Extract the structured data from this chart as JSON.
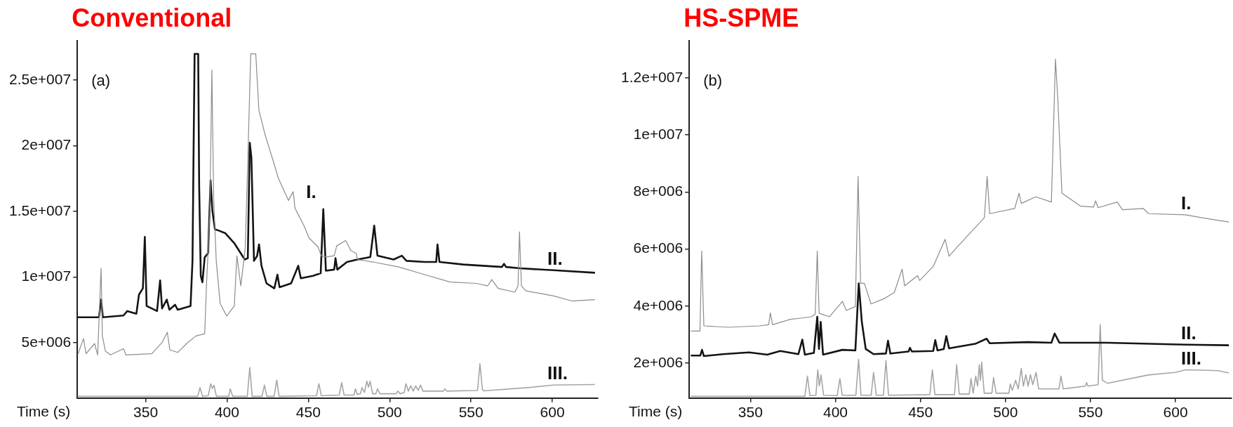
{
  "chart_data": [
    {
      "type": "line",
      "title": "Conventional",
      "xlabel": "Time (s)",
      "annotations": [
        "(a)"
      ],
      "xlim": [
        308,
        628
      ],
      "xticks": [
        350,
        400,
        450,
        500,
        550,
        600
      ],
      "ylim": [
        770000,
        28000000
      ],
      "yticks": [
        {
          "value": 5000000,
          "label": "5e+006"
        },
        {
          "value": 10000000,
          "label": "1e+007"
        },
        {
          "value": 15000000,
          "label": "1.5e+007"
        },
        {
          "value": 20000000,
          "label": "2e+007"
        },
        {
          "value": 25000000,
          "label": "2.5e+007"
        }
      ],
      "series": [
        {
          "name": "I.",
          "color": "#8c8c8c",
          "x": [
            308.2,
            311.8,
            313.4,
            318.6,
            320.5,
            322.6,
            323.4,
            325.3,
            328.4,
            336.4,
            337.9,
            353.8,
            360.1,
            363.3,
            364.9,
            369.7,
            375.2,
            380.7,
            386.3,
            387.4,
            389.5,
            390.7,
            391.8,
            393.4,
            395.8,
            399.8,
            404.5,
            406.1,
            408.5,
            411.2,
            412.8,
            414.6,
            417.7,
            419.6,
            423.5,
            428.3,
            431.5,
            437.8,
            440.7,
            441.8,
            444.1,
            447.3,
            450.5,
            456,
            457.9,
            461.1,
            465.9,
            467.5,
            473,
            476.2,
            479.4,
            480.2,
            489.7,
            505.6,
            521.4,
            537.3,
            553.2,
            560.3,
            562.7,
            566.7,
            577,
            578.9,
            579.8,
            581,
            583.7,
            600.8,
            611.9,
            626.2
          ],
          "values": [
            4060000,
            5300000,
            4150000,
            4920000,
            4060000,
            10660000,
            5490000,
            4340000,
            4060000,
            4530000,
            4060000,
            4150000,
            5010000,
            5780000,
            4440000,
            4250000,
            4920000,
            5490000,
            5680000,
            9320000,
            15060000,
            25780000,
            16020000,
            11230000,
            7980000,
            7020000,
            7790000,
            11620000,
            9320000,
            12190000,
            18890000,
            27000000,
            27000000,
            22720000,
            20800000,
            18890000,
            17550000,
            15830000,
            16500000,
            15250000,
            14680000,
            13910000,
            12960000,
            12290000,
            11620000,
            11520000,
            11620000,
            12380000,
            12770000,
            12000000,
            11810000,
            11330000,
            11140000,
            10760000,
            10180000,
            9610000,
            9510000,
            9320000,
            9800000,
            9130000,
            8840000,
            9320000,
            13440000,
            9320000,
            8940000,
            8550000,
            8170000,
            8270000
          ]
        },
        {
          "name": "II.",
          "color": "#141414",
          "x": [
            308.2,
            321.3,
            322.6,
            323.7,
            336.4,
            338.7,
            344.3,
            345.9,
            348.3,
            349.5,
            350.6,
            357,
            358.9,
            360.1,
            363,
            364.6,
            368.1,
            369.7,
            377.6,
            378.8,
            379.5,
            380.1,
            382.3,
            382.9,
            383.9,
            384.9,
            386.3,
            388.4,
            389.9,
            391,
            392.6,
            395,
            398.9,
            404.5,
            410.9,
            412.8,
            414,
            415,
            416.6,
            418.5,
            419.7,
            421.2,
            424.3,
            429.1,
            431,
            432.3,
            439.4,
            443.8,
            445.4,
            452.9,
            457.6,
            459.2,
            460.8,
            465.9,
            466.7,
            467.8,
            473.8,
            480.2,
            488.1,
            490.5,
            492.5,
            502.4,
            507.5,
            510.3,
            521.4,
            528.6,
            529.4,
            530.6,
            545.2,
            569,
            570.3,
            571.5,
            580.2,
            600.8,
            626.2
          ],
          "values": [
            6930000,
            6930000,
            8270000,
            6930000,
            7060000,
            7400000,
            7200000,
            8650000,
            9130000,
            13050000,
            7790000,
            7400000,
            9740000,
            7600000,
            8270000,
            7500000,
            7880000,
            7500000,
            7790000,
            11230000,
            20040000,
            27000000,
            27000000,
            16980000,
            10080000,
            9600000,
            11500000,
            11810000,
            17360000,
            15060000,
            13630000,
            13530000,
            13340000,
            12570000,
            11330000,
            11430000,
            20230000,
            19080000,
            11230000,
            11600000,
            12480000,
            10850000,
            9510000,
            9130000,
            10180000,
            9220000,
            9510000,
            10850000,
            9900000,
            10090000,
            10280000,
            15160000,
            10470000,
            10560000,
            11430000,
            10560000,
            11140000,
            11330000,
            11520000,
            13910000,
            11620000,
            11330000,
            11620000,
            11230000,
            11140000,
            11140000,
            12480000,
            11140000,
            10950000,
            10760000,
            11000000,
            10760000,
            10660000,
            10510000,
            10320000
          ]
        },
        {
          "name": "III.",
          "color": "#a6a6a6",
          "x": [
            308.2,
            382,
            383.4,
            385,
            388.5,
            390,
            391,
            392,
            393.5,
            401,
            402,
            403.5,
            412.5,
            414,
            415.5,
            421.5,
            423,
            424.5,
            429,
            430.6,
            432,
            455,
            456.5,
            458,
            469,
            470.5,
            472,
            478,
            479,
            480,
            482,
            483,
            484.5,
            486,
            487,
            488,
            489.5,
            491.5,
            492.5,
            494,
            504,
            505,
            506.5,
            509,
            510,
            511.5,
            513,
            514.5,
            516,
            517.5,
            519,
            520.5,
            533,
            534,
            535,
            554,
            555.5,
            557,
            558,
            585,
            600.8,
            626.2
          ],
          "values": [
            900000,
            900000,
            1570000,
            900000,
            950000,
            1860000,
            1500000,
            1750000,
            900000,
            900000,
            1470000,
            900000,
            900000,
            3100000,
            900000,
            900000,
            1760000,
            900000,
            900000,
            2140000,
            900000,
            950000,
            1860000,
            950000,
            1000000,
            1950000,
            1000000,
            1000000,
            1470000,
            1050000,
            1100000,
            1570000,
            1200000,
            2050000,
            1600000,
            2050000,
            1100000,
            1100000,
            1470000,
            1100000,
            1100000,
            1300000,
            1100000,
            1200000,
            1860000,
            1300000,
            1700000,
            1300000,
            1700000,
            1350000,
            1760000,
            1300000,
            1300000,
            1470000,
            1300000,
            1350000,
            3390000,
            1400000,
            1320000,
            1570000,
            1760000,
            1800000
          ]
        }
      ]
    },
    {
      "type": "line",
      "title": "HS-SPME",
      "xlabel": "Time (s)",
      "annotations": [
        "(b)"
      ],
      "xlim": [
        314,
        633
      ],
      "xticks": [
        350,
        400,
        450,
        500,
        550,
        600
      ],
      "ylim": [
        780000,
        13300000
      ],
      "yticks": [
        {
          "value": 2000000,
          "label": "2e+006"
        },
        {
          "value": 4000000,
          "label": "4e+006"
        },
        {
          "value": 6000000,
          "label": "6e+006"
        },
        {
          "value": 8000000,
          "label": "8e+006"
        },
        {
          "value": 10000000,
          "label": "1e+007"
        },
        {
          "value": 12000000,
          "label": "1.2e+007"
        }
      ],
      "series": [
        {
          "name": "I.",
          "color": "#8c8c8c",
          "x": [
            314.9,
            320.3,
            321.3,
            322.6,
            337,
            355.3,
            360.7,
            361.7,
            363,
            373.6,
            379.7,
            385.8,
            388.1,
            389.3,
            390.4,
            396.5,
            404.1,
            406.4,
            411.7,
            413.3,
            414.8,
            417,
            420.9,
            428.5,
            434.6,
            439.2,
            440.7,
            448.3,
            449.5,
            457.5,
            464.5,
            466.8,
            472.2,
            487.6,
            489.2,
            490.7,
            505.4,
            508,
            509.3,
            517.8,
            527,
            529.4,
            530.9,
            533.2,
            544,
            551.8,
            553,
            554.5,
            565.7,
            568.8,
            581.1,
            584.2,
            605.9,
            615.1,
            631.4
          ],
          "values": [
            3130000,
            3130000,
            5930000,
            3310000,
            3260000,
            3310000,
            3350000,
            3760000,
            3350000,
            3540000,
            3580000,
            3630000,
            3720000,
            5930000,
            3750000,
            3630000,
            4170000,
            3850000,
            3990000,
            8550000,
            4800000,
            4800000,
            4080000,
            4260000,
            4480000,
            5300000,
            4710000,
            5070000,
            4900000,
            5390000,
            6340000,
            5750000,
            6110000,
            7100000,
            8550000,
            7240000,
            7420000,
            7960000,
            7600000,
            7830000,
            7650000,
            12660000,
            11120000,
            7960000,
            7510000,
            7470000,
            7690000,
            7450000,
            7650000,
            7380000,
            7420000,
            7240000,
            7200000,
            7100000,
            6950000
          ]
        },
        {
          "name": "II.",
          "color": "#141414",
          "x": [
            314.9,
            320.5,
            321.5,
            322.6,
            334,
            349.2,
            359.9,
            367.5,
            378.2,
            380.5,
            382,
            387.3,
            389.3,
            390.3,
            391.3,
            392.7,
            404.1,
            411.7,
            413.7,
            415.5,
            417.8,
            422.4,
            429.7,
            430.9,
            432.3,
            443,
            443.8,
            445,
            457.5,
            458.7,
            460,
            463.7,
            465.2,
            466.8,
            482.2,
            488.9,
            490.7,
            513.1,
            527,
            528.9,
            531.7,
            559.5,
            605.9,
            631.4
          ],
          "values": [
            2270000,
            2270000,
            2470000,
            2250000,
            2320000,
            2380000,
            2300000,
            2430000,
            2320000,
            2830000,
            2300000,
            2360000,
            3630000,
            2500000,
            3450000,
            2300000,
            2470000,
            2450000,
            4800000,
            3450000,
            2500000,
            2320000,
            2340000,
            2790000,
            2340000,
            2410000,
            2540000,
            2410000,
            2430000,
            2810000,
            2450000,
            2500000,
            2950000,
            2520000,
            2680000,
            2860000,
            2700000,
            2740000,
            2720000,
            3040000,
            2720000,
            2720000,
            2650000,
            2630000
          ]
        },
        {
          "name": "III.",
          "color": "#a6a6a6",
          "x": [
            314.9,
            382,
            383.5,
            385,
            388.5,
            389.6,
            390.5,
            391.5,
            393,
            401,
            402.6,
            404,
            412,
            413.6,
            415,
            421,
            422.4,
            424,
            428.2,
            429.7,
            431.2,
            455.5,
            457,
            458.5,
            470,
            471.3,
            472.8,
            478.7,
            479.7,
            481,
            482.5,
            483.6,
            484.6,
            485.3,
            486,
            487.5,
            492,
            493,
            494.5,
            502,
            502.8,
            504,
            506,
            507.5,
            509.3,
            510.5,
            512,
            513.3,
            514.7,
            516,
            518,
            519.5,
            531.5,
            532.6,
            534,
            547,
            547.7,
            548.5,
            554.5,
            555.7,
            557,
            560,
            584,
            600,
            606,
            625,
            631.4
          ],
          "values": [
            840000,
            840000,
            1550000,
            860000,
            880000,
            1770000,
            1200000,
            1590000,
            880000,
            860000,
            1460000,
            880000,
            880000,
            2140000,
            880000,
            880000,
            1680000,
            880000,
            880000,
            2090000,
            880000,
            900000,
            1770000,
            900000,
            900000,
            1950000,
            920000,
            920000,
            1460000,
            950000,
            1550000,
            1200000,
            1950000,
            1400000,
            2040000,
            950000,
            950000,
            1500000,
            950000,
            950000,
            1270000,
            1050000,
            1400000,
            1100000,
            1820000,
            1200000,
            1600000,
            1200000,
            1600000,
            1250000,
            1680000,
            1100000,
            1100000,
            1550000,
            1100000,
            1200000,
            1320000,
            1200000,
            1250000,
            3360000,
            1400000,
            1300000,
            1590000,
            1680000,
            1770000,
            1740000,
            1660000
          ]
        }
      ]
    }
  ]
}
